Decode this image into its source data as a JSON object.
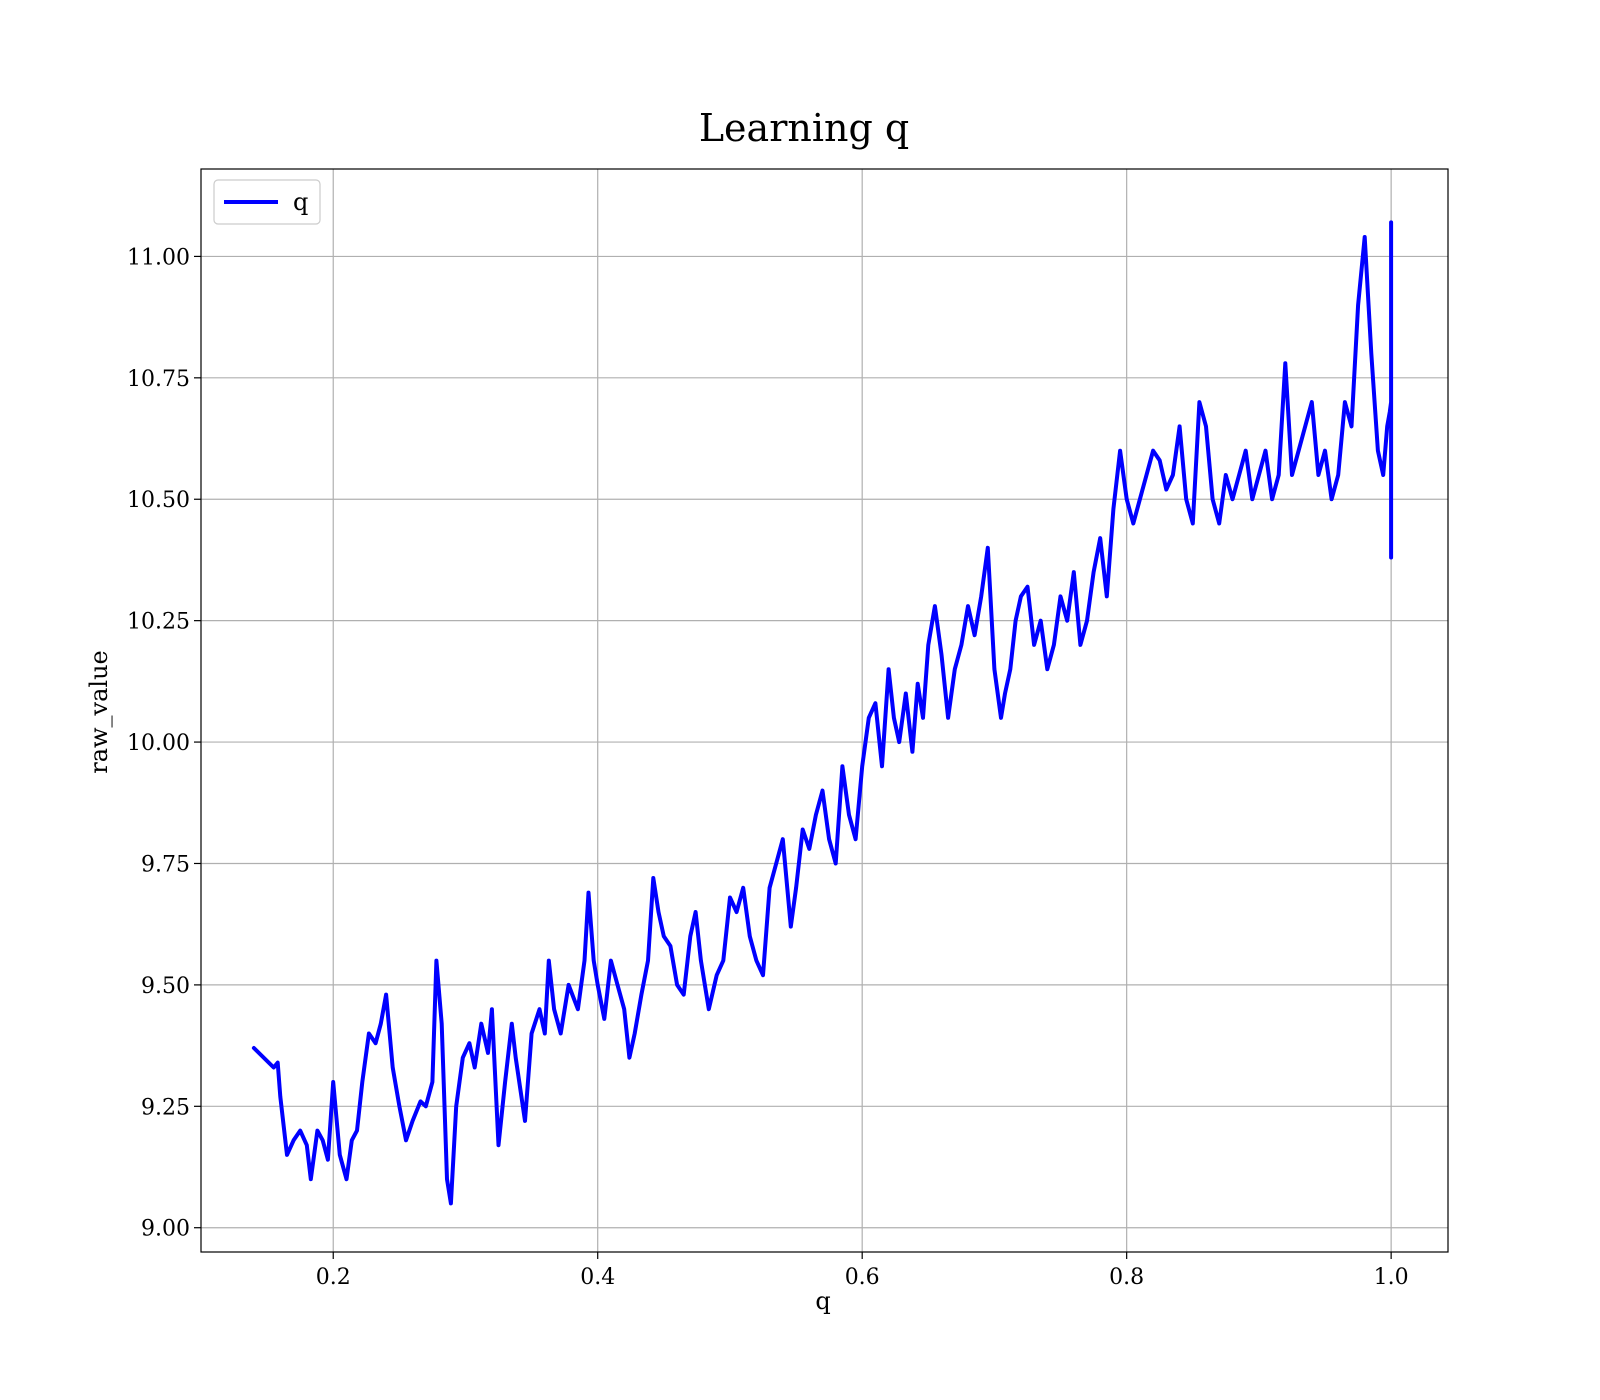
{
  "chart_data": {
    "type": "line",
    "title": "Learning q",
    "xlabel": "q",
    "ylabel": "raw_value",
    "xlim": [
      0.1,
      1.043
    ],
    "ylim": [
      8.95,
      11.18
    ],
    "xticks": [
      0.2,
      0.4,
      0.6,
      0.8,
      1.0
    ],
    "xtick_labels": [
      "0.2",
      "0.4",
      "0.6",
      "0.8",
      "1.0"
    ],
    "yticks": [
      9.0,
      9.25,
      9.5,
      9.75,
      10.0,
      10.25,
      10.5,
      10.75,
      11.0
    ],
    "ytick_labels": [
      "9.00",
      "9.25",
      "9.50",
      "9.75",
      "10.00",
      "10.25",
      "10.50",
      "10.75",
      "11.00"
    ],
    "grid": true,
    "legend": {
      "position": "top-left",
      "entries": [
        "q"
      ]
    },
    "series": [
      {
        "name": "q",
        "color": "#0000ff",
        "x": [
          0.14,
          0.155,
          0.158,
          0.16,
          0.165,
          0.17,
          0.175,
          0.18,
          0.183,
          0.188,
          0.192,
          0.196,
          0.2,
          0.205,
          0.21,
          0.214,
          0.218,
          0.222,
          0.227,
          0.232,
          0.236,
          0.24,
          0.245,
          0.25,
          0.255,
          0.26,
          0.266,
          0.27,
          0.275,
          0.278,
          0.282,
          0.286,
          0.289,
          0.293,
          0.298,
          0.303,
          0.307,
          0.312,
          0.317,
          0.32,
          0.325,
          0.33,
          0.335,
          0.338,
          0.345,
          0.35,
          0.356,
          0.36,
          0.363,
          0.367,
          0.372,
          0.378,
          0.385,
          0.39,
          0.393,
          0.397,
          0.4,
          0.405,
          0.41,
          0.415,
          0.42,
          0.424,
          0.428,
          0.433,
          0.438,
          0.442,
          0.446,
          0.45,
          0.455,
          0.46,
          0.465,
          0.47,
          0.474,
          0.478,
          0.484,
          0.49,
          0.495,
          0.5,
          0.505,
          0.51,
          0.515,
          0.52,
          0.525,
          0.53,
          0.535,
          0.54,
          0.546,
          0.55,
          0.555,
          0.56,
          0.565,
          0.57,
          0.575,
          0.58,
          0.585,
          0.59,
          0.595,
          0.6,
          0.605,
          0.61,
          0.615,
          0.62,
          0.624,
          0.628,
          0.633,
          0.638,
          0.642,
          0.646,
          0.65,
          0.655,
          0.66,
          0.665,
          0.67,
          0.675,
          0.68,
          0.685,
          0.69,
          0.695,
          0.7,
          0.705,
          0.708,
          0.712,
          0.716,
          0.72,
          0.725,
          0.73,
          0.735,
          0.74,
          0.745,
          0.75,
          0.755,
          0.76,
          0.765,
          0.77,
          0.775,
          0.78,
          0.785,
          0.79,
          0.795,
          0.8,
          0.805,
          0.81,
          0.815,
          0.82,
          0.825,
          0.83,
          0.835,
          0.84,
          0.845,
          0.85,
          0.855,
          0.86,
          0.865,
          0.87,
          0.875,
          0.88,
          0.885,
          0.89,
          0.895,
          0.9,
          0.905,
          0.91,
          0.915,
          0.92,
          0.925,
          0.93,
          0.935,
          0.94,
          0.945,
          0.95,
          0.955,
          0.96,
          0.965,
          0.97,
          0.975,
          0.98,
          0.985,
          0.99,
          0.994,
          0.997,
          0.999,
          1.0,
          1.0,
          1.0
        ],
        "y": [
          9.37,
          9.33,
          9.34,
          9.27,
          9.15,
          9.18,
          9.2,
          9.17,
          9.1,
          9.2,
          9.18,
          9.14,
          9.3,
          9.15,
          9.1,
          9.18,
          9.2,
          9.3,
          9.4,
          9.38,
          9.42,
          9.48,
          9.33,
          9.25,
          9.18,
          9.22,
          9.26,
          9.25,
          9.3,
          9.55,
          9.42,
          9.1,
          9.05,
          9.25,
          9.35,
          9.38,
          9.33,
          9.42,
          9.36,
          9.45,
          9.17,
          9.3,
          9.42,
          9.35,
          9.22,
          9.4,
          9.45,
          9.4,
          9.55,
          9.45,
          9.4,
          9.5,
          9.45,
          9.55,
          9.69,
          9.55,
          9.5,
          9.43,
          9.55,
          9.5,
          9.45,
          9.35,
          9.4,
          9.48,
          9.55,
          9.72,
          9.65,
          9.6,
          9.58,
          9.5,
          9.48,
          9.6,
          9.65,
          9.55,
          9.45,
          9.52,
          9.55,
          9.68,
          9.65,
          9.7,
          9.6,
          9.55,
          9.52,
          9.7,
          9.75,
          9.8,
          9.62,
          9.7,
          9.82,
          9.78,
          9.85,
          9.9,
          9.8,
          9.75,
          9.95,
          9.85,
          9.8,
          9.95,
          10.05,
          10.08,
          9.95,
          10.15,
          10.05,
          10.0,
          10.1,
          9.98,
          10.12,
          10.05,
          10.2,
          10.28,
          10.18,
          10.05,
          10.15,
          10.2,
          10.28,
          10.22,
          10.3,
          10.4,
          10.15,
          10.05,
          10.1,
          10.15,
          10.25,
          10.3,
          10.32,
          10.2,
          10.25,
          10.15,
          10.2,
          10.3,
          10.25,
          10.35,
          10.2,
          10.25,
          10.35,
          10.42,
          10.3,
          10.48,
          10.6,
          10.5,
          10.45,
          10.5,
          10.55,
          10.6,
          10.58,
          10.52,
          10.55,
          10.65,
          10.5,
          10.45,
          10.7,
          10.65,
          10.5,
          10.45,
          10.55,
          10.5,
          10.55,
          10.6,
          10.5,
          10.55,
          10.6,
          10.5,
          10.55,
          10.78,
          10.55,
          10.6,
          10.65,
          10.7,
          10.55,
          10.6,
          10.5,
          10.55,
          10.7,
          10.65,
          10.9,
          11.04,
          10.8,
          10.6,
          10.55,
          10.65,
          10.68,
          10.7,
          11.07,
          10.38
        ]
      }
    ]
  }
}
